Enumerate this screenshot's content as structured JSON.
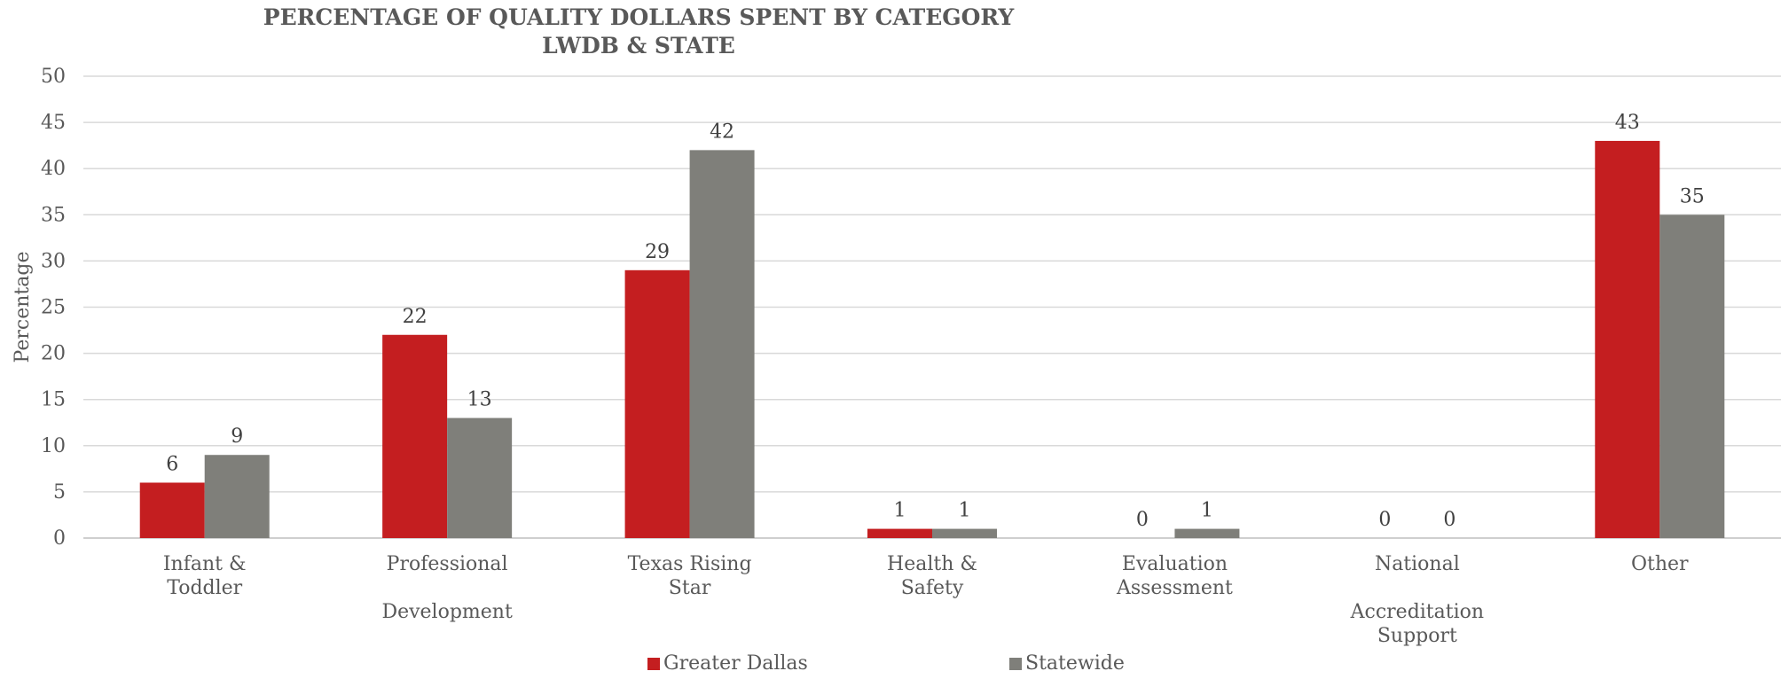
{
  "chart_data": {
    "type": "bar",
    "title_lines": [
      "PERCENTAGE OF QUALITY DOLLARS SPENT BY CATEGORY",
      "LWDB & STATE"
    ],
    "ylabel": "Percentage",
    "xlabel": "",
    "ylim": [
      0,
      50
    ],
    "yticks": [
      0,
      5,
      10,
      15,
      20,
      25,
      30,
      35,
      40,
      45,
      50
    ],
    "grid": true,
    "legend_position": "bottom",
    "categories": [
      [
        "Infant &",
        "Toddler"
      ],
      [
        "Professional",
        "",
        "Development"
      ],
      [
        "Texas Rising",
        "Star"
      ],
      [
        "Health &",
        "Safety"
      ],
      [
        "Evaluation",
        "Assessment"
      ],
      [
        "National",
        "",
        "Accreditation",
        "Support"
      ],
      [
        "Other"
      ]
    ],
    "series": [
      {
        "name": "Greater Dallas",
        "color": "#c41e20",
        "values": [
          6,
          22,
          29,
          1,
          0,
          0,
          43
        ]
      },
      {
        "name": "Statewide",
        "color": "#7f7f7a",
        "values": [
          9,
          13,
          42,
          1,
          1,
          0,
          35
        ]
      }
    ]
  },
  "legend": {
    "items": [
      {
        "label": "Greater Dallas",
        "color": "#c41e20"
      },
      {
        "label": "Statewide",
        "color": "#7f7f7a"
      }
    ]
  }
}
